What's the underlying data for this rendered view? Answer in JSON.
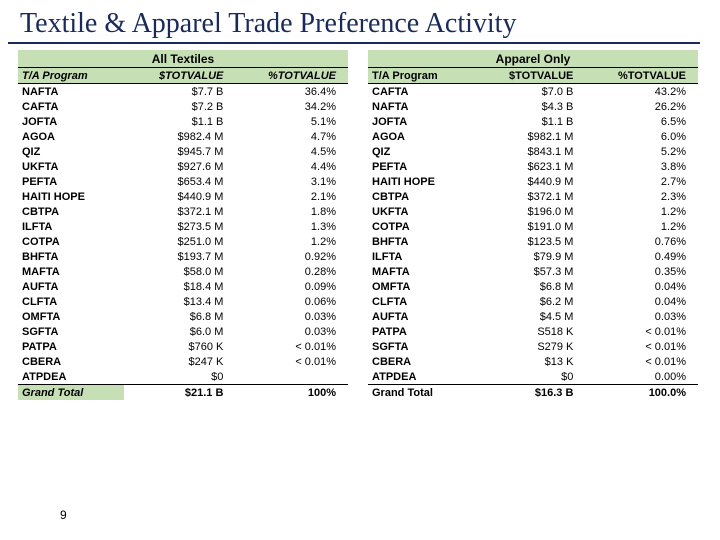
{
  "title": "Textile & Apparel Trade Preference Activity",
  "pageNumber": "9",
  "colors": {
    "headerBg": "#c6dfb5",
    "titleColor": "#1a2a5a",
    "border": "#000000"
  },
  "leftTable": {
    "caption": "All Textiles",
    "columns": [
      "T/A Program",
      "$TOTVALUE",
      "%TOTVALUE"
    ],
    "rows": [
      [
        "NAFTA",
        "$7.7 B",
        "36.4%"
      ],
      [
        "CAFTA",
        "$7.2 B",
        "34.2%"
      ],
      [
        "JOFTA",
        "$1.1 B",
        "5.1%"
      ],
      [
        "AGOA",
        "$982.4 M",
        "4.7%"
      ],
      [
        "QIZ",
        "$945.7 M",
        "4.5%"
      ],
      [
        "UKFTA",
        "$927.6 M",
        "4.4%"
      ],
      [
        "PEFTA",
        "$653.4 M",
        "3.1%"
      ],
      [
        "HAITI HOPE",
        "$440.9 M",
        "2.1%"
      ],
      [
        "CBTPA",
        "$372.1 M",
        "1.8%"
      ],
      [
        "ILFTA",
        "$273.5 M",
        "1.3%"
      ],
      [
        "COTPA",
        "$251.0 M",
        "1.2%"
      ],
      [
        "BHFTA",
        "$193.7 M",
        "0.92%"
      ],
      [
        "MAFTA",
        "$58.0 M",
        "0.28%"
      ],
      [
        "AUFTA",
        "$18.4 M",
        "0.09%"
      ],
      [
        "CLFTA",
        "$13.4 M",
        "0.06%"
      ],
      [
        "OMFTA",
        "$6.8 M",
        "0.03%"
      ],
      [
        "SGFTA",
        "$6.0 M",
        "0.03%"
      ],
      [
        "PATPA",
        "$760 K",
        "< 0.01%"
      ],
      [
        "CBERA",
        "$247 K",
        "< 0.01%"
      ],
      [
        "ATPDEA",
        "$0",
        ""
      ]
    ],
    "grand": [
      "Grand Total",
      "$21.1 B",
      "100%"
    ]
  },
  "rightTable": {
    "caption": "Apparel Only",
    "columns": [
      "T/A Program",
      "$TOTVALUE",
      "%TOTVALUE"
    ],
    "rows": [
      [
        "CAFTA",
        "$7.0 B",
        "43.2%"
      ],
      [
        "NAFTA",
        "$4.3 B",
        "26.2%"
      ],
      [
        "JOFTA",
        "$1.1 B",
        "6.5%"
      ],
      [
        "AGOA",
        "$982.1 M",
        "6.0%"
      ],
      [
        "QIZ",
        "$843.1 M",
        "5.2%"
      ],
      [
        "PEFTA",
        "$623.1 M",
        "3.8%"
      ],
      [
        "HAITI HOPE",
        "$440.9 M",
        "2.7%"
      ],
      [
        "CBTPA",
        "$372.1 M",
        "2.3%"
      ],
      [
        "UKFTA",
        "$196.0 M",
        "1.2%"
      ],
      [
        "COTPA",
        "$191.0 M",
        "1.2%"
      ],
      [
        "BHFTA",
        "$123.5 M",
        "0.76%"
      ],
      [
        "ILFTA",
        "$79.9 M",
        "0.49%"
      ],
      [
        "MAFTA",
        "$57.3 M",
        "0.35%"
      ],
      [
        "OMFTA",
        "$6.8 M",
        "0.04%"
      ],
      [
        "CLFTA",
        "$6.2 M",
        "0.04%"
      ],
      [
        "AUFTA",
        "$4.5 M",
        "0.03%"
      ],
      [
        "PATPA",
        "S518 K",
        "< 0.01%"
      ],
      [
        "SGFTA",
        "S279 K",
        "< 0.01%"
      ],
      [
        "CBERA",
        "$13 K",
        "< 0.01%"
      ],
      [
        "ATPDEA",
        "$0",
        "0.00%"
      ]
    ],
    "grand": [
      "Grand Total",
      "$16.3 B",
      "100.0%"
    ]
  }
}
